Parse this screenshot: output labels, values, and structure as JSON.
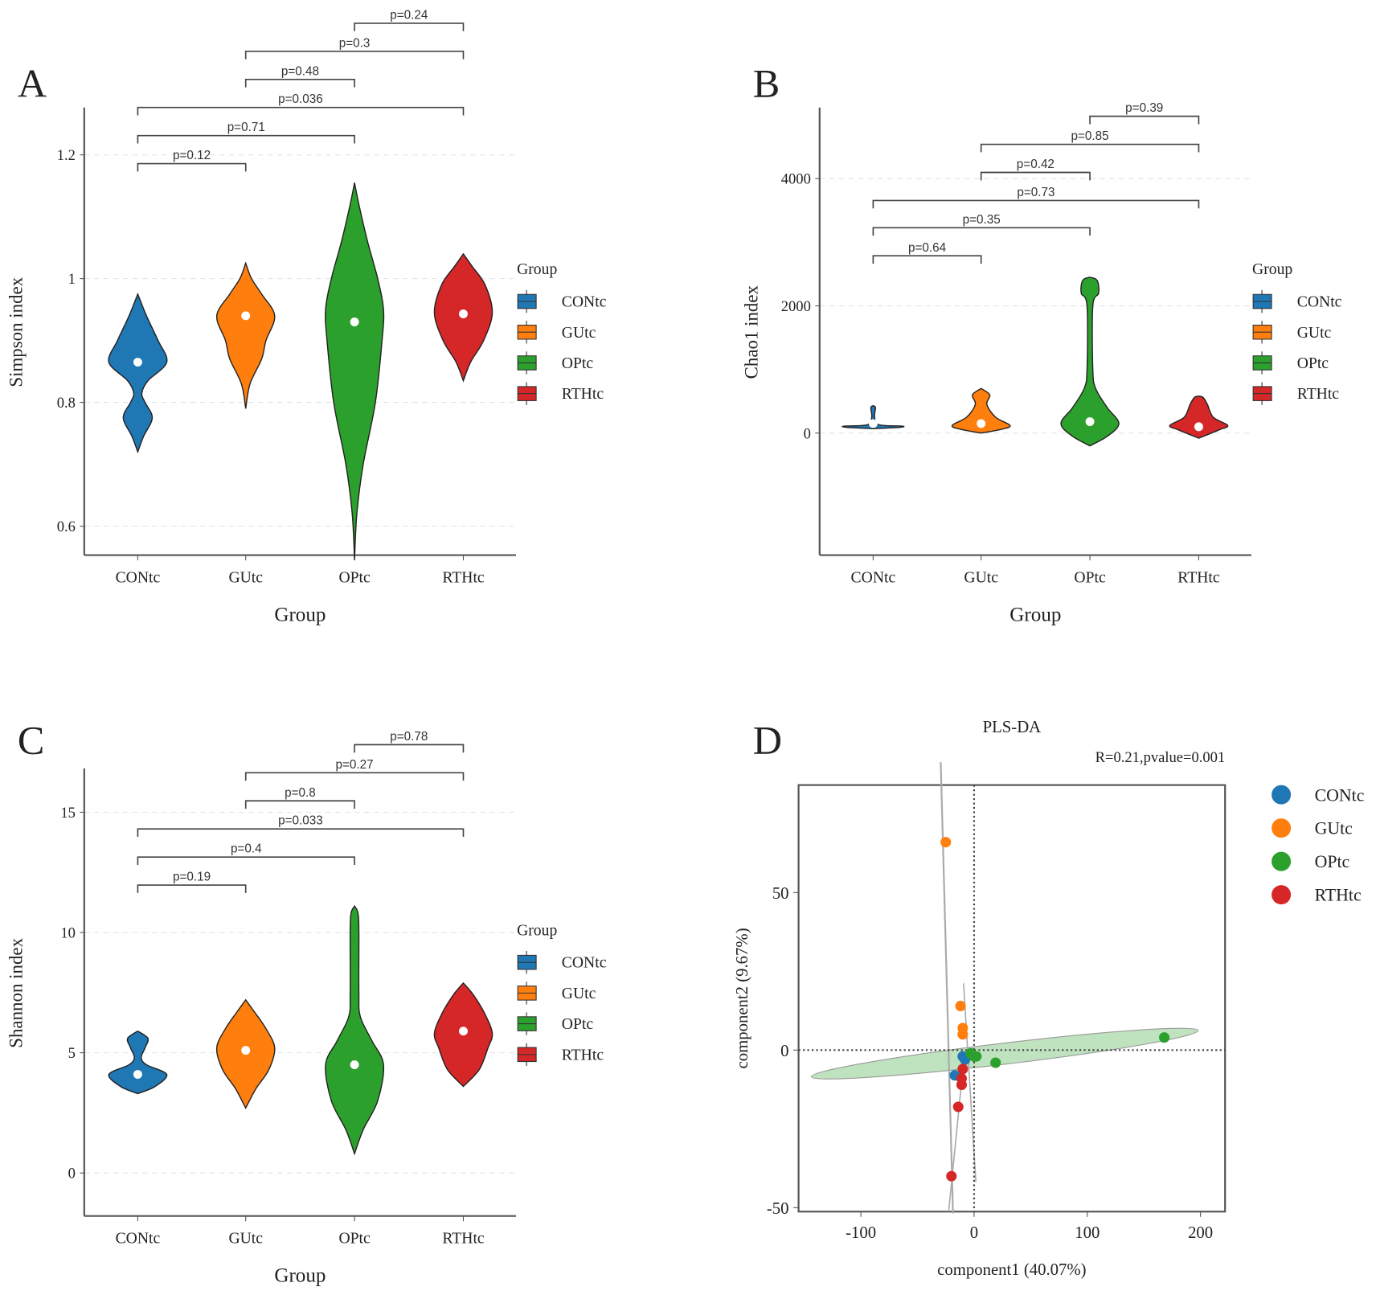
{
  "colors": {
    "CONtc": "#1f77b4",
    "GUtc": "#ff7f0e",
    "OPtc": "#2ca02c",
    "RTHtc": "#d62728"
  },
  "chart_data": [
    {
      "panel": "A",
      "type": "violin",
      "xlabel": "Group",
      "ylabel": "Simpson index",
      "categories": [
        "CONtc",
        "GUtc",
        "OPtc",
        "RTHtc"
      ],
      "yticks": [
        0.6,
        0.8,
        1,
        1.2
      ],
      "ytick_labels": [
        "0.6",
        "0.8",
        "1",
        "1.2"
      ],
      "ylim": [
        0.55,
        1.28
      ],
      "legend_title": "Group",
      "legend_position": "right",
      "grid": "horizontal dashed",
      "series": [
        {
          "name": "CONtc",
          "median": 0.865,
          "density": [
            [
              0.72,
              0
            ],
            [
              0.745,
              0.2
            ],
            [
              0.775,
              0.5
            ],
            [
              0.8,
              0.25
            ],
            [
              0.815,
              0.14
            ],
            [
              0.835,
              0.35
            ],
            [
              0.865,
              1
            ],
            [
              0.9,
              0.7
            ],
            [
              0.94,
              0.3
            ],
            [
              0.975,
              0
            ]
          ]
        },
        {
          "name": "GUtc",
          "median": 0.94,
          "density": [
            [
              0.79,
              0
            ],
            [
              0.83,
              0.15
            ],
            [
              0.87,
              0.55
            ],
            [
              0.9,
              0.7
            ],
            [
              0.94,
              1
            ],
            [
              0.975,
              0.55
            ],
            [
              1.0,
              0.2
            ],
            [
              1.025,
              0
            ]
          ]
        },
        {
          "name": "OPtc",
          "median": 0.93,
          "density": [
            [
              0.545,
              0
            ],
            [
              0.62,
              0.08
            ],
            [
              0.7,
              0.3
            ],
            [
              0.8,
              0.72
            ],
            [
              0.9,
              0.95
            ],
            [
              0.95,
              1
            ],
            [
              1.0,
              0.8
            ],
            [
              1.06,
              0.45
            ],
            [
              1.12,
              0.15
            ],
            [
              1.155,
              0
            ]
          ]
        },
        {
          "name": "RTHtc",
          "median": 0.943,
          "density": [
            [
              0.835,
              0
            ],
            [
              0.865,
              0.25
            ],
            [
              0.9,
              0.7
            ],
            [
              0.945,
              1
            ],
            [
              0.99,
              0.75
            ],
            [
              1.02,
              0.3
            ],
            [
              1.04,
              0
            ]
          ]
        }
      ],
      "comparisons": [
        {
          "groups": [
            "CONtc",
            "GUtc"
          ],
          "label": "p=0.12"
        },
        {
          "groups": [
            "CONtc",
            "OPtc"
          ],
          "label": "p=0.71"
        },
        {
          "groups": [
            "CONtc",
            "RTHtc"
          ],
          "label": "p=0.036"
        },
        {
          "groups": [
            "GUtc",
            "OPtc"
          ],
          "label": "p=0.48"
        },
        {
          "groups": [
            "GUtc",
            "RTHtc"
          ],
          "label": "p=0.3"
        },
        {
          "groups": [
            "OPtc",
            "RTHtc"
          ],
          "label": "p=0.24"
        }
      ]
    },
    {
      "panel": "B",
      "type": "violin",
      "xlabel": "Group",
      "ylabel": "Chao1 index",
      "categories": [
        "CONtc",
        "GUtc",
        "OPtc",
        "RTHtc"
      ],
      "yticks": [
        0,
        2000,
        4000
      ],
      "ytick_labels": [
        "0",
        "2000",
        "4000"
      ],
      "ylim": [
        -1900,
        5000
      ],
      "legend_title": "Group",
      "legend_position": "right",
      "grid": "horizontal dashed",
      "series": [
        {
          "name": "CONtc",
          "median": 150,
          "density": [
            [
              70,
              0
            ],
            [
              90,
              0.9
            ],
            [
              110,
              1
            ],
            [
              130,
              0.2
            ],
            [
              250,
              0.05
            ],
            [
              400,
              0.08
            ],
            [
              430,
              0
            ]
          ]
        },
        {
          "name": "GUtc",
          "median": 150,
          "density": [
            [
              0,
              0
            ],
            [
              60,
              0.7
            ],
            [
              120,
              1
            ],
            [
              250,
              0.5
            ],
            [
              450,
              0.2
            ],
            [
              600,
              0.3
            ],
            [
              700,
              0
            ]
          ]
        },
        {
          "name": "OPtc",
          "median": 180,
          "density": [
            [
              -200,
              0
            ],
            [
              -50,
              0.6
            ],
            [
              150,
              1
            ],
            [
              400,
              0.6
            ],
            [
              700,
              0.2
            ],
            [
              1000,
              0.1
            ],
            [
              2000,
              0.1
            ],
            [
              2200,
              0.3
            ],
            [
              2400,
              0.25
            ],
            [
              2450,
              0
            ]
          ]
        },
        {
          "name": "RTHtc",
          "median": 100,
          "density": [
            [
              -80,
              0
            ],
            [
              50,
              0.7
            ],
            [
              120,
              1
            ],
            [
              250,
              0.5
            ],
            [
              450,
              0.3
            ],
            [
              560,
              0.15
            ],
            [
              580,
              0
            ]
          ]
        }
      ],
      "comparisons": [
        {
          "groups": [
            "CONtc",
            "GUtc"
          ],
          "label": "p=0.64"
        },
        {
          "groups": [
            "CONtc",
            "OPtc"
          ],
          "label": "p=0.35"
        },
        {
          "groups": [
            "CONtc",
            "RTHtc"
          ],
          "label": "p=0.73"
        },
        {
          "groups": [
            "GUtc",
            "OPtc"
          ],
          "label": "p=0.42"
        },
        {
          "groups": [
            "GUtc",
            "RTHtc"
          ],
          "label": "p=0.85"
        },
        {
          "groups": [
            "OPtc",
            "RTHtc"
          ],
          "label": "p=0.39"
        }
      ]
    },
    {
      "panel": "C",
      "type": "violin",
      "xlabel": "Group",
      "ylabel": "Shannon index",
      "categories": [
        "CONtc",
        "GUtc",
        "OPtc",
        "RTHtc"
      ],
      "yticks": [
        0,
        5,
        10,
        15
      ],
      "ytick_labels": [
        "0",
        "5",
        "10",
        "15"
      ],
      "ylim": [
        -1.8,
        16.8
      ],
      "legend_title": "Group",
      "legend_position": "right",
      "grid": "horizontal dashed",
      "series": [
        {
          "name": "CONtc",
          "median": 4.1,
          "density": [
            [
              3.3,
              0
            ],
            [
              3.6,
              0.6
            ],
            [
              4.1,
              1
            ],
            [
              4.5,
              0.3
            ],
            [
              4.8,
              0.12
            ],
            [
              5.2,
              0.25
            ],
            [
              5.6,
              0.35
            ],
            [
              5.9,
              0
            ]
          ]
        },
        {
          "name": "GUtc",
          "median": 5.1,
          "density": [
            [
              2.7,
              0
            ],
            [
              3.5,
              0.35
            ],
            [
              4.3,
              0.8
            ],
            [
              5.2,
              1
            ],
            [
              6.0,
              0.7
            ],
            [
              6.7,
              0.3
            ],
            [
              7.2,
              0
            ]
          ]
        },
        {
          "name": "OPtc",
          "median": 4.5,
          "density": [
            [
              0.8,
              0
            ],
            [
              1.8,
              0.3
            ],
            [
              3.0,
              0.8
            ],
            [
              4.5,
              1
            ],
            [
              5.5,
              0.6
            ],
            [
              6.5,
              0.2
            ],
            [
              7.5,
              0.15
            ],
            [
              10.0,
              0.15
            ],
            [
              10.8,
              0.12
            ],
            [
              11.1,
              0
            ]
          ]
        },
        {
          "name": "RTHtc",
          "median": 5.9,
          "density": [
            [
              3.6,
              0
            ],
            [
              4.3,
              0.55
            ],
            [
              5.2,
              0.85
            ],
            [
              5.8,
              1
            ],
            [
              6.6,
              0.75
            ],
            [
              7.4,
              0.35
            ],
            [
              7.9,
              0
            ]
          ]
        }
      ],
      "comparisons": [
        {
          "groups": [
            "CONtc",
            "GUtc"
          ],
          "label": "p=0.19"
        },
        {
          "groups": [
            "CONtc",
            "OPtc"
          ],
          "label": "p=0.4"
        },
        {
          "groups": [
            "CONtc",
            "RTHtc"
          ],
          "label": "p=0.033"
        },
        {
          "groups": [
            "GUtc",
            "OPtc"
          ],
          "label": "p=0.8"
        },
        {
          "groups": [
            "GUtc",
            "RTHtc"
          ],
          "label": "p=0.27"
        },
        {
          "groups": [
            "OPtc",
            "RTHtc"
          ],
          "label": "p=0.78"
        }
      ]
    },
    {
      "panel": "D",
      "type": "scatter",
      "title": "PLS-DA",
      "subtitle": "R=0.21,pvalue=0.001",
      "xlabel": "component1 (40.07%)",
      "ylabel": "component2 (9.67%)",
      "xlim": [
        -155,
        223
      ],
      "ylim": [
        -51,
        84
      ],
      "xticks": [
        -100,
        0,
        100,
        200
      ],
      "xtick_labels": [
        "-100",
        "0",
        "100",
        "200"
      ],
      "yticks": [
        -50,
        0,
        50
      ],
      "ytick_labels": [
        "-50",
        "0",
        "50"
      ],
      "legend_position": "right",
      "legend": [
        "CONtc",
        "GUtc",
        "OPtc",
        "RTHtc"
      ],
      "series": [
        {
          "name": "CONtc",
          "points": [
            [
              -10,
              -2
            ],
            [
              -17,
              -8
            ],
            [
              -8,
              -3
            ]
          ]
        },
        {
          "name": "GUtc",
          "points": [
            [
              -25,
              66
            ],
            [
              -12,
              14
            ],
            [
              -10,
              7
            ],
            [
              -10,
              5
            ]
          ]
        },
        {
          "name": "OPtc",
          "points": [
            [
              -3,
              -1
            ],
            [
              0,
              -2
            ],
            [
              2,
              -2
            ],
            [
              19,
              -4
            ],
            [
              168,
              4
            ]
          ]
        },
        {
          "name": "RTHtc",
          "points": [
            [
              -10,
              -6
            ],
            [
              -11,
              -9
            ],
            [
              -11,
              -11
            ],
            [
              -14,
              -18
            ],
            [
              -20,
              -40
            ]
          ]
        }
      ]
    }
  ]
}
